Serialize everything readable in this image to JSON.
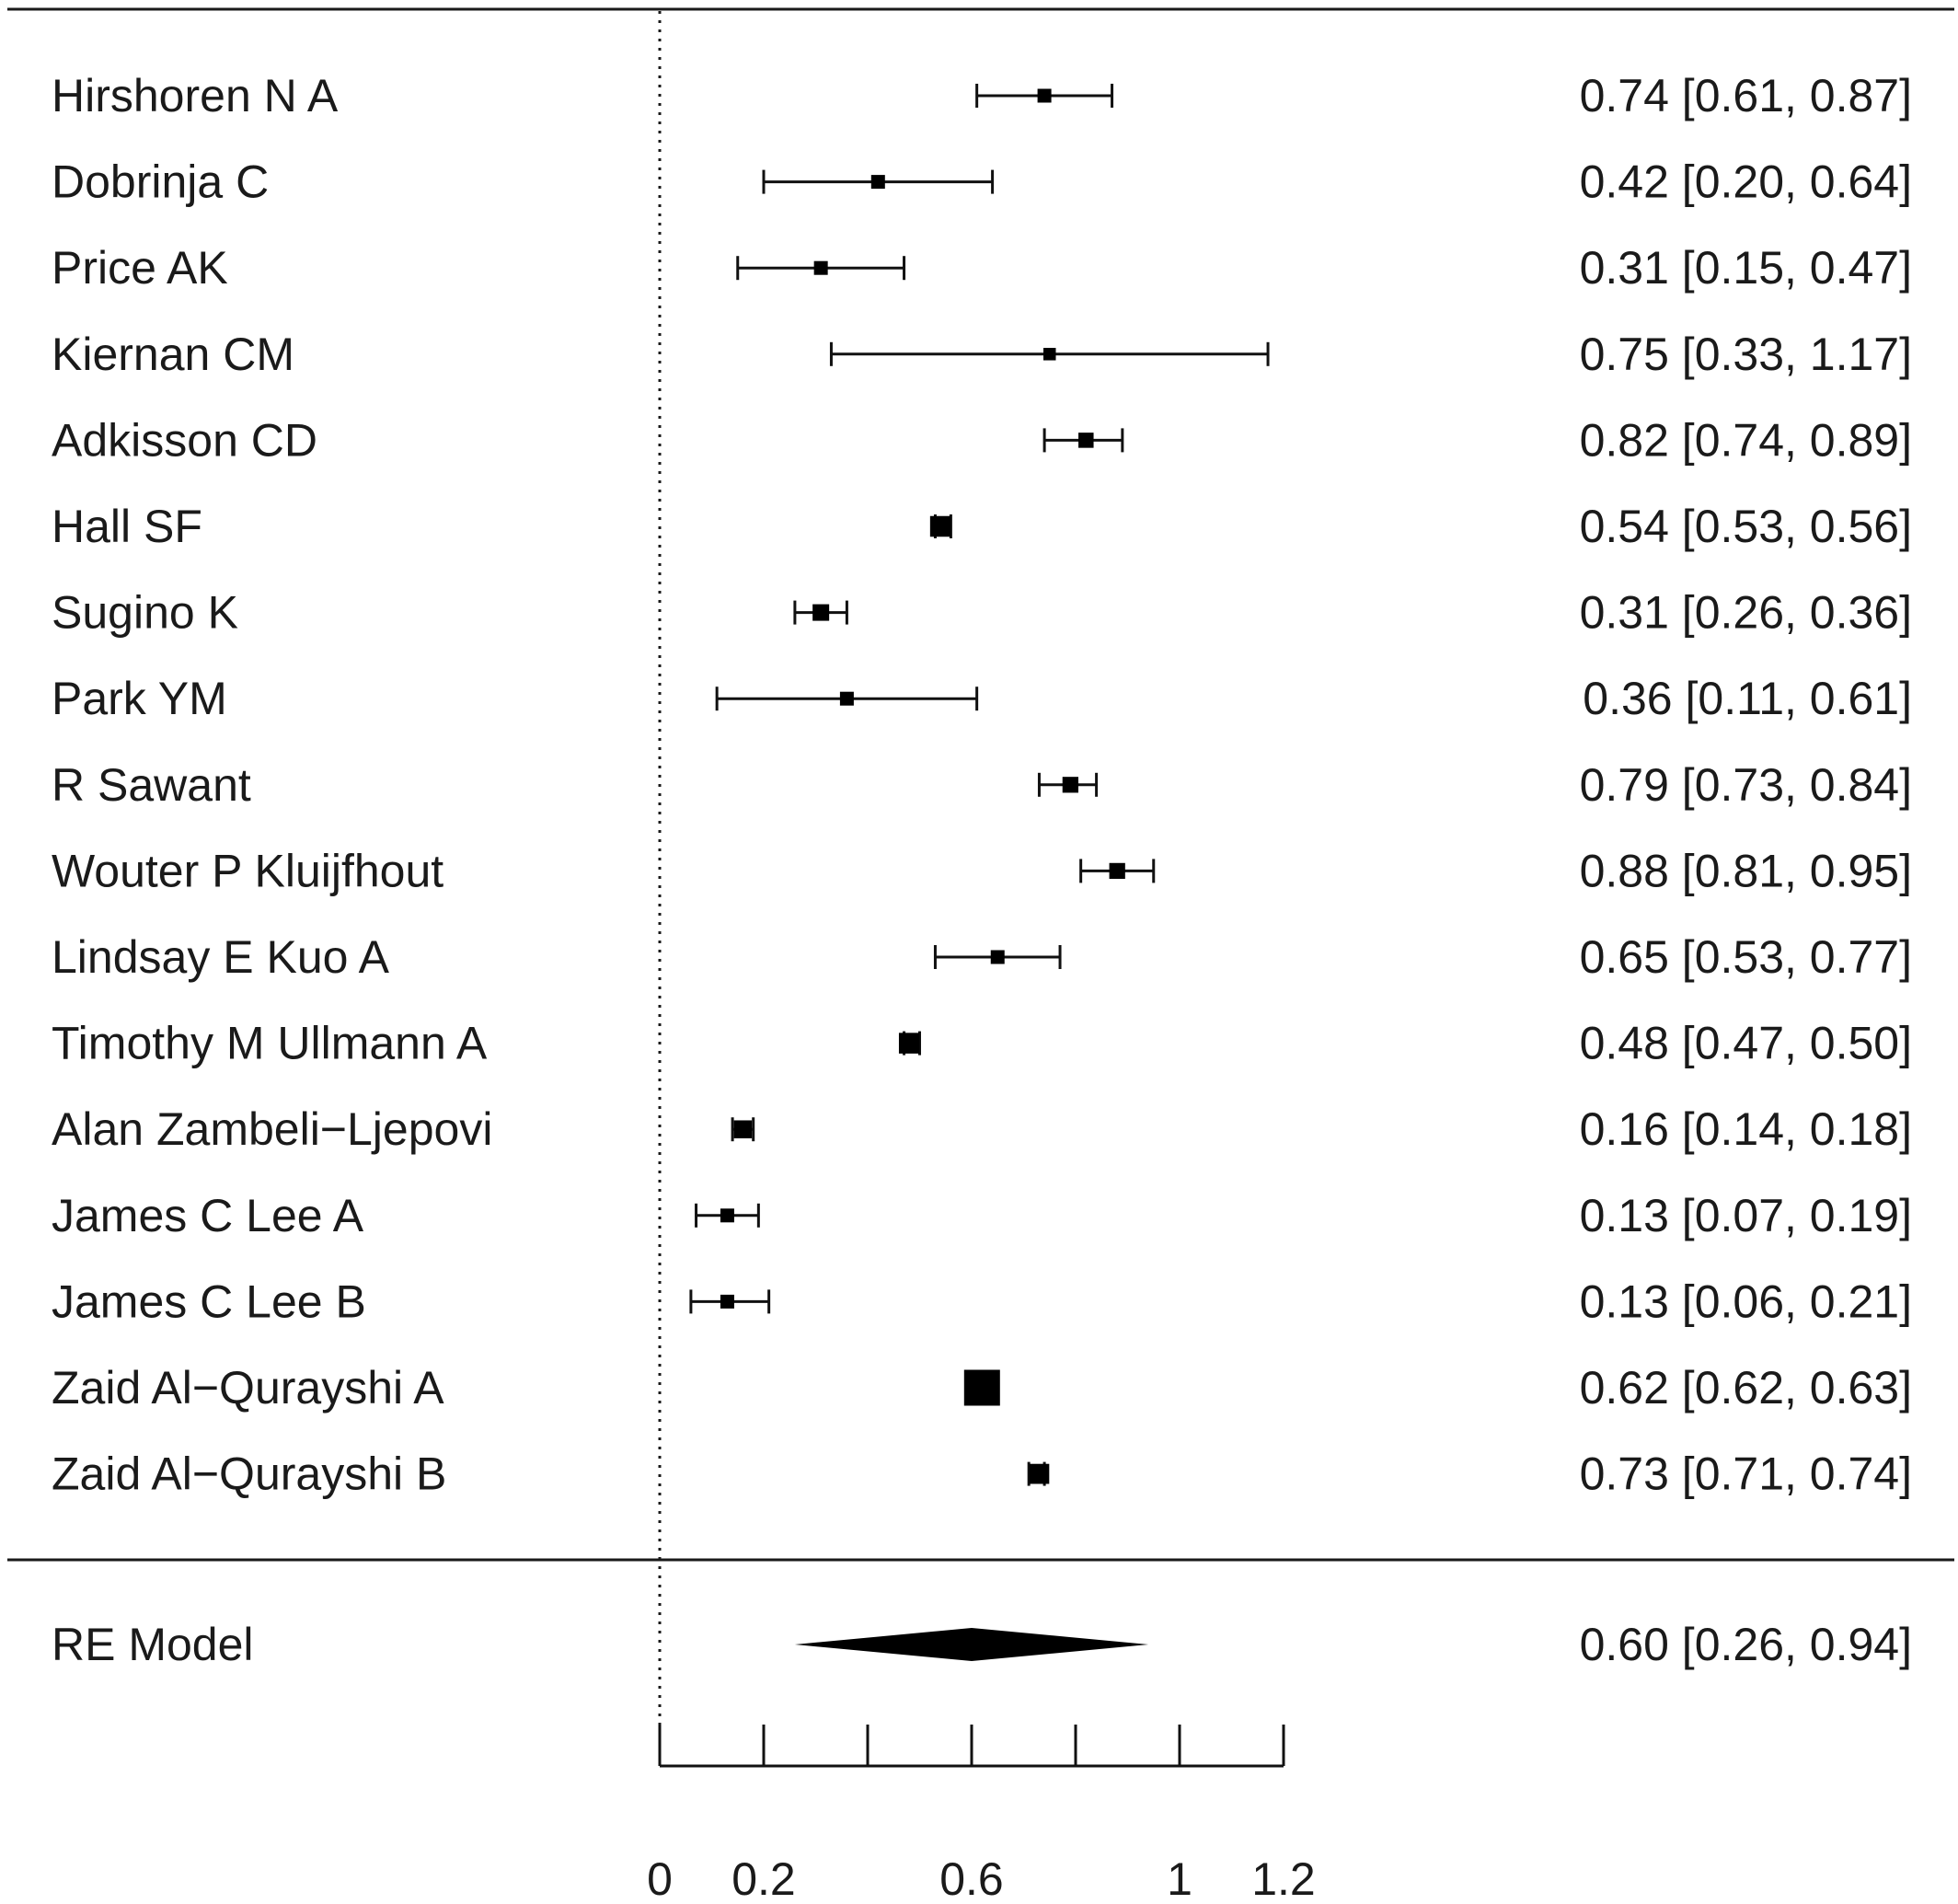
{
  "chart_data": {
    "type": "forest",
    "studies": [
      {
        "name": "Hirshoren N A",
        "estimate": 0.74,
        "lower": 0.61,
        "upper": 0.87,
        "ci_text": "0.74 [0.61, 0.87]",
        "weight": 1
      },
      {
        "name": "Dobrinja C",
        "estimate": 0.42,
        "lower": 0.2,
        "upper": 0.64,
        "ci_text": "0.42 [0.20, 0.64]",
        "weight": 1
      },
      {
        "name": "Price AK",
        "estimate": 0.31,
        "lower": 0.15,
        "upper": 0.47,
        "ci_text": "0.31 [0.15, 0.47]",
        "weight": 1
      },
      {
        "name": "Kiernan CM",
        "estimate": 0.75,
        "lower": 0.33,
        "upper": 1.17,
        "ci_text": "0.75 [0.33, 1.17]",
        "weight": 0.9
      },
      {
        "name": "Adkisson CD",
        "estimate": 0.82,
        "lower": 0.74,
        "upper": 0.89,
        "ci_text": "0.82 [0.74, 0.89]",
        "weight": 1.1
      },
      {
        "name": "Hall SF",
        "estimate": 0.54,
        "lower": 0.53,
        "upper": 0.56,
        "ci_text": "0.54 [0.53, 0.56]",
        "weight": 1.5
      },
      {
        "name": "Sugino K",
        "estimate": 0.31,
        "lower": 0.26,
        "upper": 0.36,
        "ci_text": "0.31 [0.26, 0.36]",
        "weight": 1.2
      },
      {
        "name": "Park YM",
        "estimate": 0.36,
        "lower": 0.11,
        "upper": 0.61,
        "ci_text": "0.36 [0.11, 0.61]",
        "weight": 1
      },
      {
        "name": "R Sawant",
        "estimate": 0.79,
        "lower": 0.73,
        "upper": 0.84,
        "ci_text": "0.79 [0.73, 0.84]",
        "weight": 1.15
      },
      {
        "name": "Wouter P Kluijfhout",
        "estimate": 0.88,
        "lower": 0.81,
        "upper": 0.95,
        "ci_text": "0.88 [0.81, 0.95]",
        "weight": 1.15
      },
      {
        "name": "Lindsay E Kuo A",
        "estimate": 0.65,
        "lower": 0.53,
        "upper": 0.77,
        "ci_text": "0.65 [0.53, 0.77]",
        "weight": 1
      },
      {
        "name": "Timothy M Ullmann A",
        "estimate": 0.48,
        "lower": 0.47,
        "upper": 0.5,
        "ci_text": "0.48 [0.47, 0.50]",
        "weight": 1.5
      },
      {
        "name": "Alan Zambeli−Ljepovi",
        "estimate": 0.16,
        "lower": 0.14,
        "upper": 0.18,
        "ci_text": "0.16 [0.14, 0.18]",
        "weight": 1.3
      },
      {
        "name": "James C Lee A",
        "estimate": 0.13,
        "lower": 0.07,
        "upper": 0.19,
        "ci_text": "0.13 [0.07, 0.19]",
        "weight": 1
      },
      {
        "name": "James C Lee B",
        "estimate": 0.13,
        "lower": 0.06,
        "upper": 0.21,
        "ci_text": "0.13 [0.06, 0.21]",
        "weight": 1
      },
      {
        "name": "Zaid Al−Qurayshi A",
        "estimate": 0.62,
        "lower": 0.62,
        "upper": 0.63,
        "ci_text": "0.62 [0.62, 0.63]",
        "weight": 2.6
      },
      {
        "name": "Zaid Al−Qurayshi B",
        "estimate": 0.73,
        "lower": 0.71,
        "upper": 0.74,
        "ci_text": "0.73 [0.71, 0.74]",
        "weight": 1.45
      }
    ],
    "summary": {
      "name": "RE Model",
      "estimate": 0.6,
      "lower": 0.26,
      "upper": 0.94,
      "ci_text": "0.60 [0.26, 0.94]"
    },
    "reference_line": 0,
    "x_ticks": [
      0,
      0.2,
      0.4,
      0.6,
      0.8,
      1.0,
      1.2
    ],
    "x_tick_labels": [
      "0",
      "0.2",
      "",
      "0.6",
      "",
      "1",
      "1.2"
    ],
    "xlim": [
      0,
      1.2
    ],
    "title": "",
    "xlabel": "",
    "ylabel": ""
  }
}
